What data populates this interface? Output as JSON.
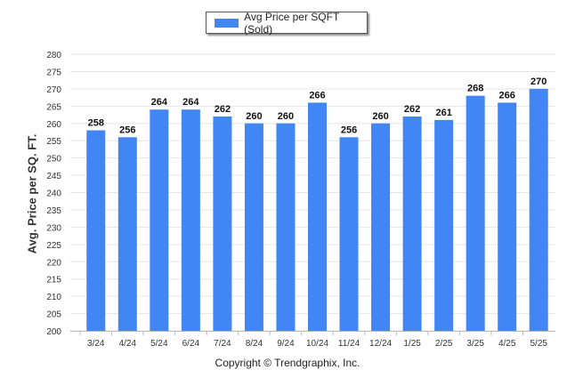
{
  "chart_data": {
    "type": "bar",
    "categories": [
      "3/24",
      "4/24",
      "5/24",
      "6/24",
      "7/24",
      "8/24",
      "9/24",
      "10/24",
      "11/24",
      "12/24",
      "1/25",
      "2/25",
      "3/25",
      "4/25",
      "5/25"
    ],
    "series": [
      {
        "name": "Avg Price per SQFT (Sold)",
        "values": [
          258,
          256,
          264,
          264,
          262,
          260,
          260,
          266,
          256,
          260,
          262,
          261,
          268,
          266,
          270
        ]
      }
    ],
    "ylabel": "Avg. Price per SQ. FT.",
    "xlabel": "",
    "ylim": [
      200,
      280
    ],
    "ytick_step": 5,
    "grid": true,
    "legend_position": "top-center",
    "data_labels": true,
    "bar_color": "#4286f4"
  },
  "footer": {
    "copyright": "Copyright © Trendgraphix, Inc."
  }
}
